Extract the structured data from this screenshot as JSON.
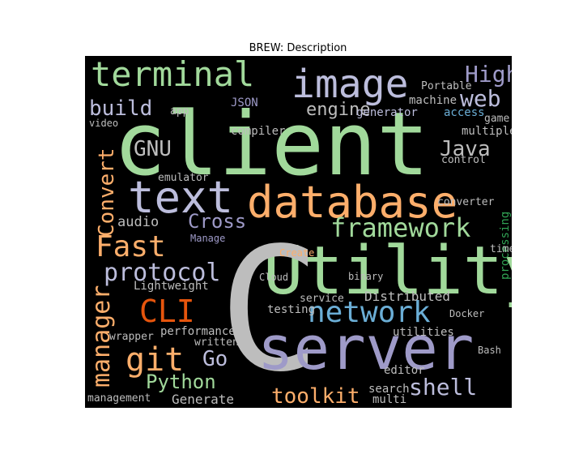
{
  "title": "BREW: Description",
  "words": [
    "client",
    "Utility",
    "C",
    "server",
    "database",
    "text",
    "image",
    "terminal",
    "High",
    "web",
    "build",
    "engine",
    "GNU",
    "Java",
    "Convert",
    "framework",
    "Fast",
    "Cross",
    "audio",
    "protocol",
    "manager",
    "CLI",
    "network",
    "git",
    "Go",
    "Python",
    "toolkit",
    "shell",
    "Generate",
    "performance",
    "Lightweight",
    "testing",
    "Distributed",
    "utilities",
    "editor",
    "multi",
    "search",
    "management",
    "written",
    "wrapper",
    "machine",
    "generator",
    "access",
    "multiple",
    "game",
    "video",
    "emulator",
    "compiler",
    "JSON",
    "control",
    "converter",
    "processing",
    "time",
    "Docker",
    "Manage",
    "Create",
    "Cloud",
    "service",
    "binary",
    "app",
    "Portable",
    "Bash"
  ]
}
